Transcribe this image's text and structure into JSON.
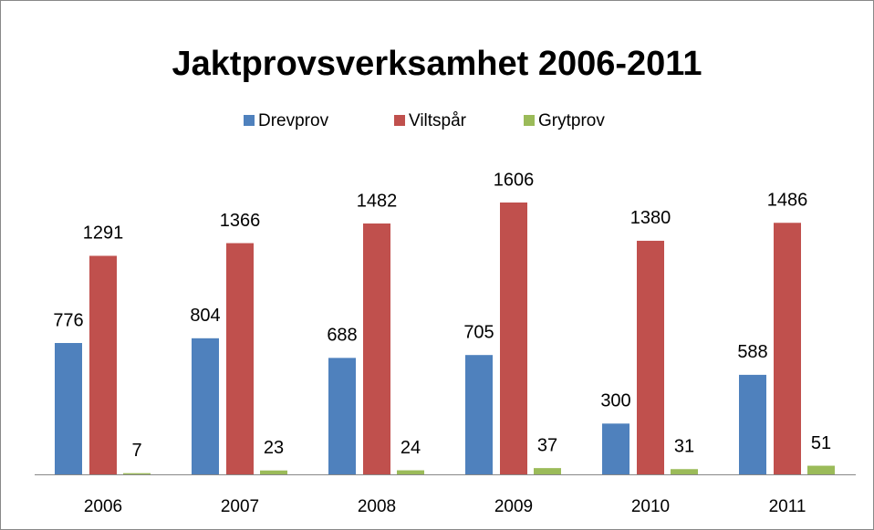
{
  "chart_data": {
    "type": "bar",
    "title": "Jaktprovsverksamhet 2006-2011",
    "categories": [
      "2006",
      "2007",
      "2008",
      "2009",
      "2010",
      "2011"
    ],
    "series": [
      {
        "name": "Drevprov",
        "color": "#4f81bd",
        "values": [
          776,
          804,
          688,
          705,
          300,
          588
        ]
      },
      {
        "name": "Viltspår",
        "color": "#c0504d",
        "values": [
          1291,
          1366,
          1482,
          1606,
          1380,
          1486
        ]
      },
      {
        "name": "Grytprov",
        "color": "#9bbb59",
        "values": [
          7,
          23,
          24,
          37,
          31,
          51
        ]
      }
    ],
    "legend": "top"
  }
}
